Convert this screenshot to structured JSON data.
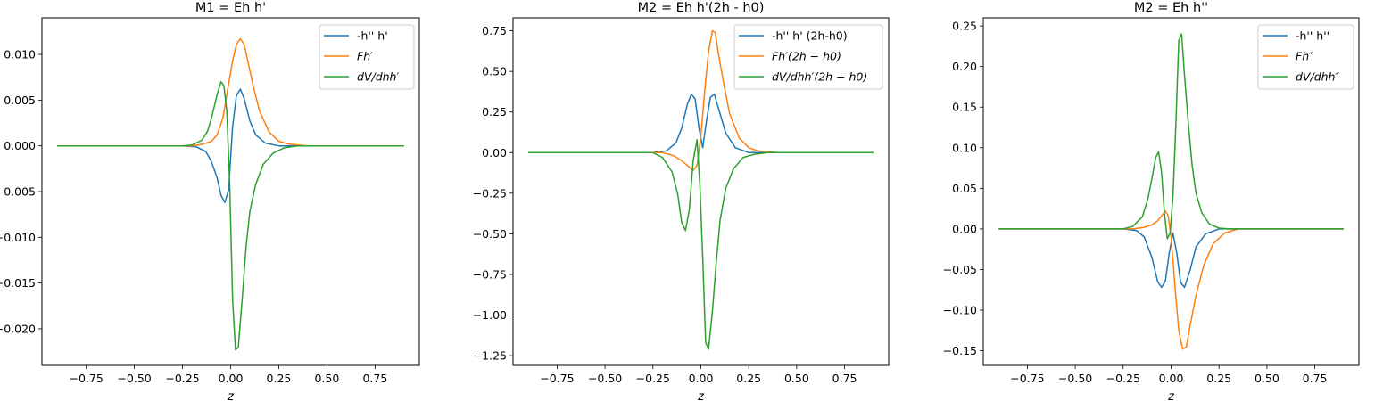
{
  "chart_data": [
    {
      "type": "line",
      "title": "M1 = Eh h'",
      "xlabel": "z",
      "ylabel": "",
      "xlim": [
        -0.98,
        0.98
      ],
      "ylim": [
        -0.024,
        0.014
      ],
      "xticks": [
        -0.75,
        -0.5,
        -0.25,
        0.0,
        0.25,
        0.5,
        0.75
      ],
      "xtick_labels": [
        "−0.75",
        "−0.50",
        "−0.25",
        "0.00",
        "0.25",
        "0.50",
        "0.75"
      ],
      "yticks": [
        -0.02,
        -0.015,
        -0.01,
        -0.005,
        0.0,
        0.005,
        0.01
      ],
      "ytick_labels": [
        "−0.020",
        "−0.015",
        "−0.010",
        "−0.005",
        "0.000",
        "0.005",
        "0.010"
      ],
      "legend_loc": "upper right",
      "series": [
        {
          "name": "-h'' h'",
          "color": "#1f77b4",
          "x": [
            -0.9,
            -0.25,
            -0.18,
            -0.13,
            -0.1,
            -0.07,
            -0.05,
            -0.03,
            -0.01,
            0.01,
            0.03,
            0.05,
            0.07,
            0.1,
            0.13,
            0.18,
            0.25,
            0.9
          ],
          "y": [
            0.0,
            0.0,
            -0.0001,
            -0.0006,
            -0.0017,
            -0.0035,
            -0.0054,
            -0.0062,
            -0.0048,
            0.0021,
            0.0055,
            0.0062,
            0.0052,
            0.0027,
            0.0012,
            0.0003,
            0.0,
            0.0
          ]
        },
        {
          "name": "Fh'",
          "color": "#ff7f0e",
          "x": [
            -0.9,
            -0.2,
            -0.14,
            -0.1,
            -0.07,
            -0.04,
            -0.01,
            0.01,
            0.03,
            0.05,
            0.07,
            0.09,
            0.12,
            0.15,
            0.2,
            0.25,
            0.3,
            0.4,
            0.9
          ],
          "y": [
            0.0,
            0.0,
            0.0002,
            0.0005,
            0.0012,
            0.0031,
            0.0068,
            0.0093,
            0.0111,
            0.0117,
            0.0111,
            0.0092,
            0.0063,
            0.0038,
            0.0015,
            0.0005,
            0.0002,
            0.0,
            0.0
          ]
        },
        {
          "name": "dV/dhh'",
          "color": "#2ca02c",
          "x": [
            -0.9,
            -0.25,
            -0.2,
            -0.15,
            -0.12,
            -0.1,
            -0.07,
            -0.05,
            -0.035,
            -0.02,
            -0.005,
            0.01,
            0.025,
            0.04,
            0.06,
            0.08,
            0.1,
            0.13,
            0.17,
            0.22,
            0.28,
            0.35,
            0.9
          ],
          "y": [
            0.0,
            0.0,
            0.0001,
            0.0006,
            0.0016,
            0.003,
            0.0056,
            0.007,
            0.0066,
            0.0038,
            -0.004,
            -0.0168,
            -0.0223,
            -0.022,
            -0.0168,
            -0.011,
            -0.0071,
            -0.0042,
            -0.002,
            -0.0008,
            -0.0002,
            0.0,
            0.0
          ]
        }
      ]
    },
    {
      "type": "line",
      "title": "M2 = Eh h'(2h - h0)",
      "xlabel": "z",
      "ylabel": "",
      "xlim": [
        -0.98,
        0.98
      ],
      "ylim": [
        -1.31,
        0.83
      ],
      "xticks": [
        -0.75,
        -0.5,
        -0.25,
        0.0,
        0.25,
        0.5,
        0.75
      ],
      "xtick_labels": [
        "−0.75",
        "−0.50",
        "−0.25",
        "0.00",
        "0.25",
        "0.50",
        "0.75"
      ],
      "yticks": [
        -1.25,
        -1.0,
        -0.75,
        -0.5,
        -0.25,
        0.0,
        0.25,
        0.5,
        0.75
      ],
      "ytick_labels": [
        "−1.25",
        "−1.00",
        "−0.75",
        "−0.50",
        "−0.25",
        "0.00",
        "0.25",
        "0.50",
        "0.75"
      ],
      "legend_loc": "upper right",
      "series": [
        {
          "name": "-h'' h' (2h-h0)",
          "color": "#1f77b4",
          "x": [
            -0.9,
            -0.25,
            -0.18,
            -0.13,
            -0.1,
            -0.07,
            -0.05,
            -0.03,
            -0.01,
            0.01,
            0.03,
            0.05,
            0.07,
            0.1,
            0.13,
            0.18,
            0.25,
            0.9
          ],
          "y": [
            0.0,
            0.0,
            0.01,
            0.06,
            0.15,
            0.3,
            0.36,
            0.33,
            0.15,
            0.03,
            0.2,
            0.34,
            0.36,
            0.24,
            0.12,
            0.03,
            0.0,
            0.0
          ]
        },
        {
          "name": "Fh'(2h-h0)",
          "color": "#ff7f0e",
          "x": [
            -0.9,
            -0.2,
            -0.14,
            -0.1,
            -0.07,
            -0.04,
            -0.02,
            0.0,
            0.02,
            0.04,
            0.06,
            0.075,
            0.09,
            0.12,
            0.15,
            0.2,
            0.25,
            0.3,
            0.4,
            0.9
          ],
          "y": [
            0.0,
            0.0,
            -0.02,
            -0.05,
            -0.08,
            -0.11,
            -0.08,
            0.1,
            0.38,
            0.62,
            0.75,
            0.74,
            0.62,
            0.42,
            0.24,
            0.09,
            0.03,
            0.01,
            0.0,
            0.0
          ]
        },
        {
          "name": "dV/dhh'(2h-h0)",
          "color": "#2ca02c",
          "x": [
            -0.9,
            -0.25,
            -0.2,
            -0.15,
            -0.12,
            -0.1,
            -0.08,
            -0.06,
            -0.04,
            -0.02,
            -0.005,
            0.01,
            0.025,
            0.04,
            0.06,
            0.08,
            0.1,
            0.13,
            0.17,
            0.22,
            0.28,
            0.35,
            0.9
          ],
          "y": [
            0.0,
            0.0,
            -0.03,
            -0.12,
            -0.26,
            -0.43,
            -0.48,
            -0.35,
            -0.05,
            0.08,
            -0.2,
            -0.65,
            -1.17,
            -1.21,
            -0.98,
            -0.68,
            -0.42,
            -0.22,
            -0.1,
            -0.03,
            -0.01,
            0.0,
            0.0
          ]
        }
      ]
    },
    {
      "type": "line",
      "title": "M2 = Eh h''",
      "xlabel": "z",
      "ylabel": "",
      "xlim": [
        -0.98,
        0.98
      ],
      "ylim": [
        -0.168,
        0.26
      ],
      "xticks": [
        -0.75,
        -0.5,
        -0.25,
        0.0,
        0.25,
        0.5,
        0.75
      ],
      "xtick_labels": [
        "−0.75",
        "−0.50",
        "−0.25",
        "0.00",
        "0.25",
        "0.50",
        "0.75"
      ],
      "yticks": [
        -0.15,
        -0.1,
        -0.05,
        0.0,
        0.05,
        0.1,
        0.15,
        0.2,
        0.25
      ],
      "ytick_labels": [
        "−0.15",
        "−0.10",
        "−0.05",
        "0.00",
        "0.05",
        "0.10",
        "0.15",
        "0.20",
        "0.25"
      ],
      "legend_loc": "upper right",
      "series": [
        {
          "name": "-h'' h''",
          "color": "#1f77b4",
          "x": [
            -0.9,
            -0.25,
            -0.18,
            -0.14,
            -0.1,
            -0.07,
            -0.05,
            -0.03,
            -0.01,
            0.01,
            0.03,
            0.05,
            0.07,
            0.1,
            0.13,
            0.18,
            0.25,
            0.9
          ],
          "y": [
            0.0,
            0.0,
            -0.002,
            -0.01,
            -0.035,
            -0.065,
            -0.072,
            -0.064,
            -0.03,
            -0.005,
            -0.03,
            -0.066,
            -0.072,
            -0.05,
            -0.022,
            -0.006,
            0.0,
            0.0
          ]
        },
        {
          "name": "Fh''",
          "color": "#ff7f0e",
          "x": [
            -0.9,
            -0.2,
            -0.14,
            -0.1,
            -0.07,
            -0.05,
            -0.03,
            -0.015,
            0.0,
            0.02,
            0.04,
            0.06,
            0.08,
            0.1,
            0.13,
            0.17,
            0.22,
            0.28,
            0.35,
            0.9
          ],
          "y": [
            0.0,
            0.0,
            0.002,
            0.005,
            0.01,
            0.016,
            0.022,
            0.016,
            -0.01,
            -0.07,
            -0.125,
            -0.148,
            -0.145,
            -0.118,
            -0.082,
            -0.045,
            -0.018,
            -0.005,
            0.0,
            0.0
          ]
        },
        {
          "name": "dV/dhh''",
          "color": "#2ca02c",
          "x": [
            -0.9,
            -0.25,
            -0.2,
            -0.15,
            -0.12,
            -0.1,
            -0.08,
            -0.065,
            -0.05,
            -0.035,
            -0.02,
            -0.005,
            0.01,
            0.025,
            0.04,
            0.055,
            0.07,
            0.09,
            0.11,
            0.13,
            0.16,
            0.2,
            0.25,
            0.3,
            0.9
          ],
          "y": [
            0.0,
            0.0,
            0.003,
            0.015,
            0.038,
            0.062,
            0.088,
            0.095,
            0.07,
            0.02,
            -0.012,
            -0.005,
            0.04,
            0.13,
            0.232,
            0.24,
            0.19,
            0.13,
            0.078,
            0.044,
            0.02,
            0.006,
            0.001,
            0.0,
            0.0
          ]
        }
      ]
    }
  ],
  "legend_labels": [
    [
      "-h'' h'",
      "Fh′",
      "dV/dhh′"
    ],
    [
      "-h'' h' (2h-h0)",
      "Fh′(2h − h0)",
      "dV/dhh′(2h − h0)"
    ],
    [
      "-h'' h''",
      "Fh″",
      "dV/dhh″"
    ]
  ],
  "legend_math": [
    [
      false,
      true,
      true
    ],
    [
      false,
      true,
      true
    ],
    [
      false,
      true,
      true
    ]
  ]
}
